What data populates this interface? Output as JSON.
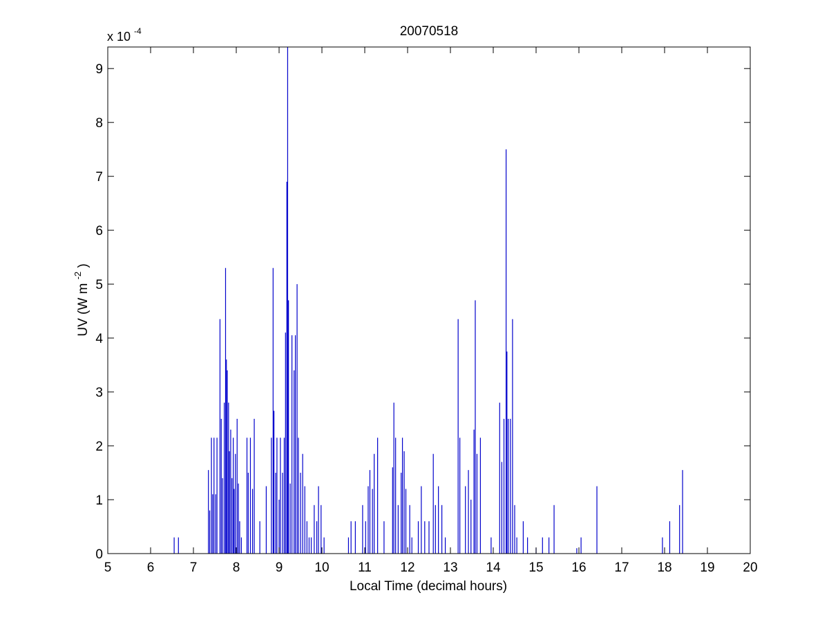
{
  "chart_data": {
    "type": "line",
    "title": "20070518",
    "xlabel": "Local Time (decimal hours)",
    "ylabel_main": "UV (W m",
    "ylabel_sup": "-2",
    "ylabel_close": ")",
    "y_multiplier_base": "x 10",
    "y_multiplier_exp": "-4",
    "xlim": [
      5,
      20
    ],
    "ylim": [
      0,
      9.4
    ],
    "y_scale": "1e-4",
    "grid": false,
    "box": true,
    "xticks": [
      5,
      6,
      7,
      8,
      9,
      10,
      11,
      12,
      13,
      14,
      15,
      16,
      17,
      18,
      19,
      20
    ],
    "yticks": [
      0,
      1,
      2,
      3,
      4,
      5,
      6,
      7,
      8,
      9
    ],
    "series": [
      {
        "color": "#0000cc",
        "spikes": [
          [
            6.55,
            0.3
          ],
          [
            6.65,
            0.3
          ],
          [
            7.35,
            1.55
          ],
          [
            7.38,
            0.8
          ],
          [
            7.42,
            2.15
          ],
          [
            7.45,
            1.1
          ],
          [
            7.48,
            2.15
          ],
          [
            7.52,
            1.1
          ],
          [
            7.55,
            2.15
          ],
          [
            7.62,
            4.35
          ],
          [
            7.65,
            2.5
          ],
          [
            7.68,
            1.4
          ],
          [
            7.72,
            2.8
          ],
          [
            7.75,
            5.3
          ],
          [
            7.77,
            3.6
          ],
          [
            7.79,
            3.4
          ],
          [
            7.82,
            2.8
          ],
          [
            7.84,
            1.9
          ],
          [
            7.87,
            2.3
          ],
          [
            7.9,
            1.4
          ],
          [
            7.93,
            2.15
          ],
          [
            7.95,
            1.2
          ],
          [
            7.98,
            1.85
          ],
          [
            8.02,
            2.5
          ],
          [
            8.05,
            1.3
          ],
          [
            8.08,
            0.6
          ],
          [
            8.12,
            0.3
          ],
          [
            8.25,
            2.15
          ],
          [
            8.28,
            1.5
          ],
          [
            8.33,
            2.15
          ],
          [
            8.38,
            1.2
          ],
          [
            8.42,
            2.5
          ],
          [
            8.55,
            0.6
          ],
          [
            8.7,
            1.25
          ],
          [
            8.82,
            2.15
          ],
          [
            8.86,
            5.3
          ],
          [
            8.88,
            2.65
          ],
          [
            8.92,
            1.5
          ],
          [
            8.95,
            2.15
          ],
          [
            9.0,
            1.0
          ],
          [
            9.03,
            2.15
          ],
          [
            9.08,
            1.5
          ],
          [
            9.12,
            2.15
          ],
          [
            9.15,
            4.1
          ],
          [
            9.18,
            6.9
          ],
          [
            9.2,
            9.4
          ],
          [
            9.22,
            4.7
          ],
          [
            9.26,
            1.3
          ],
          [
            9.3,
            4.05
          ],
          [
            9.35,
            3.4
          ],
          [
            9.38,
            4.05
          ],
          [
            9.42,
            5.0
          ],
          [
            9.45,
            2.15
          ],
          [
            9.5,
            1.5
          ],
          [
            9.55,
            1.85
          ],
          [
            9.6,
            1.25
          ],
          [
            9.65,
            0.6
          ],
          [
            9.7,
            0.3
          ],
          [
            9.75,
            0.3
          ],
          [
            9.82,
            0.9
          ],
          [
            9.88,
            0.6
          ],
          [
            9.92,
            1.25
          ],
          [
            9.98,
            0.9
          ],
          [
            10.05,
            0.3
          ],
          [
            10.62,
            0.3
          ],
          [
            10.68,
            0.6
          ],
          [
            10.78,
            0.6
          ],
          [
            10.95,
            0.9
          ],
          [
            11.02,
            0.6
          ],
          [
            11.08,
            1.25
          ],
          [
            11.12,
            1.55
          ],
          [
            11.18,
            1.2
          ],
          [
            11.22,
            1.85
          ],
          [
            11.3,
            2.15
          ],
          [
            11.45,
            0.6
          ],
          [
            11.65,
            1.6
          ],
          [
            11.68,
            2.8
          ],
          [
            11.72,
            2.15
          ],
          [
            11.78,
            0.9
          ],
          [
            11.85,
            1.5
          ],
          [
            11.88,
            2.15
          ],
          [
            11.92,
            1.9
          ],
          [
            11.96,
            1.2
          ],
          [
            12.05,
            0.9
          ],
          [
            12.1,
            0.3
          ],
          [
            12.25,
            0.6
          ],
          [
            12.32,
            1.25
          ],
          [
            12.4,
            0.6
          ],
          [
            12.5,
            0.6
          ],
          [
            12.6,
            1.85
          ],
          [
            12.65,
            0.9
          ],
          [
            12.72,
            1.25
          ],
          [
            12.8,
            0.9
          ],
          [
            12.88,
            0.3
          ],
          [
            13.18,
            4.35
          ],
          [
            13.22,
            2.15
          ],
          [
            13.35,
            1.25
          ],
          [
            13.42,
            1.55
          ],
          [
            13.48,
            1.0
          ],
          [
            13.55,
            2.3
          ],
          [
            13.58,
            4.7
          ],
          [
            13.62,
            1.85
          ],
          [
            13.7,
            2.15
          ],
          [
            13.95,
            0.3
          ],
          [
            14.15,
            2.8
          ],
          [
            14.2,
            1.7
          ],
          [
            14.25,
            2.5
          ],
          [
            14.3,
            7.5
          ],
          [
            14.32,
            3.75
          ],
          [
            14.35,
            2.5
          ],
          [
            14.4,
            2.5
          ],
          [
            14.45,
            4.35
          ],
          [
            14.5,
            0.9
          ],
          [
            14.55,
            0.3
          ],
          [
            14.7,
            0.6
          ],
          [
            14.8,
            0.3
          ],
          [
            15.0,
            0.1
          ],
          [
            15.15,
            0.3
          ],
          [
            15.3,
            0.3
          ],
          [
            15.42,
            0.9
          ],
          [
            15.95,
            0.1
          ],
          [
            16.05,
            0.3
          ],
          [
            16.42,
            1.25
          ],
          [
            17.95,
            0.3
          ],
          [
            18.12,
            0.6
          ],
          [
            18.35,
            0.9
          ],
          [
            18.42,
            1.55
          ]
        ]
      }
    ]
  }
}
